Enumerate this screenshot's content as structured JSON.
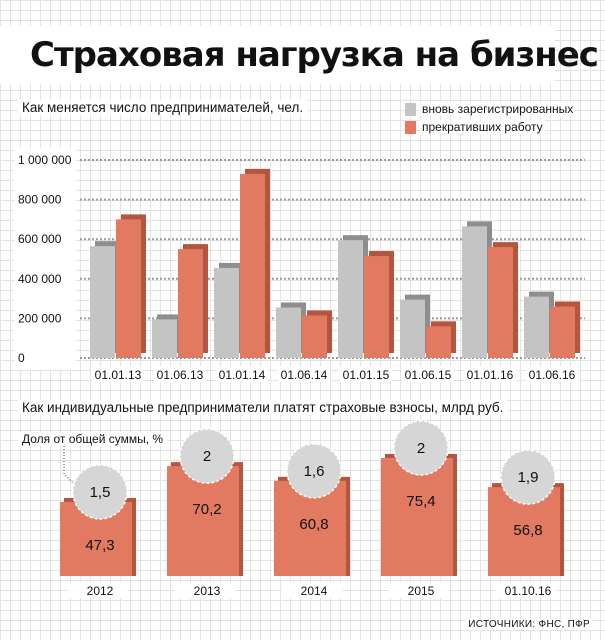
{
  "title": "Страховая нагрузка на бизнес",
  "colors": {
    "grey": "#c4c4c4",
    "red": "#e27a62"
  },
  "chart_data": [
    {
      "type": "bar",
      "title": "Как меняется число предпринимателей, чел.",
      "categories": [
        "01.01.13",
        "01.06.13",
        "01.01.14",
        "01.06.14",
        "01.01.15",
        "01.06.15",
        "01.01.16",
        "01.06.16"
      ],
      "series": [
        {
          "name": "вновь зарегистрированных",
          "values": [
            565000,
            195000,
            455000,
            255000,
            595000,
            295000,
            665000,
            310000
          ]
        },
        {
          "name": "прекративших работу",
          "values": [
            700000,
            550000,
            930000,
            215000,
            515000,
            160000,
            560000,
            260000
          ]
        }
      ],
      "yticks": [
        "1 000 000",
        "800 000",
        "600 000",
        "400 000",
        "200 000",
        "0"
      ],
      "ylim": [
        0,
        1000000
      ],
      "grid": true,
      "legend": "top-right"
    },
    {
      "type": "bar",
      "title": "Как индивидуальные предприниматели платят страховые взносы, млрд руб.",
      "annotation": "Доля от общей суммы, %",
      "categories": [
        "2012",
        "2013",
        "2014",
        "2015",
        "01.10.16"
      ],
      "values": [
        47.3,
        70.2,
        60.8,
        75.4,
        56.8
      ],
      "value_labels": [
        "47,3",
        "70,2",
        "60,8",
        "75,4",
        "56,8"
      ],
      "share_values": [
        1.5,
        2,
        1.6,
        2,
        1.9
      ],
      "share_labels": [
        "1,5",
        "2",
        "1,6",
        "2",
        "1,9"
      ]
    }
  ],
  "source": "ИСТОЧНИКИ: ФНС, ПФР"
}
